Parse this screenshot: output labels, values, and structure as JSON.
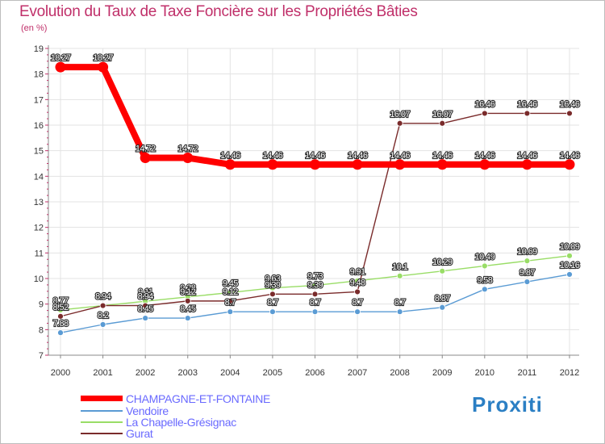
{
  "title": "Evolution du Taux de Taxe Foncière sur les Propriétés Bâties",
  "unit_label": "(en %)",
  "logo_text": "Proxiti",
  "chart_data": {
    "type": "line",
    "title": "Evolution du Taux de Taxe Foncière sur les Propriétés Bâties",
    "ylabel": "(en %)",
    "xlabel": "",
    "x": [
      "2000",
      "2001",
      "2002",
      "2003",
      "2004",
      "2005",
      "2006",
      "2007",
      "2008",
      "2009",
      "2010",
      "2011",
      "2012"
    ],
    "ylim": [
      7,
      19
    ],
    "yticks": [
      "7",
      "8",
      "9",
      "10",
      "11",
      "12",
      "13",
      "14",
      "15",
      "16",
      "17",
      "18",
      "19"
    ],
    "series": [
      {
        "name": "CHAMPAGNE-ET-FONTAINE",
        "color": "#ff0000",
        "label_color": "#ffffff",
        "values": [
          18.27,
          18.27,
          14.72,
          14.72,
          14.46,
          14.46,
          14.46,
          14.46,
          14.46,
          14.46,
          14.46,
          14.46,
          14.46
        ],
        "labels": [
          "18.27",
          "18.27",
          "14.72",
          "14.72",
          "14.46",
          "14.46",
          "14.46",
          "14.46",
          "14.46",
          "14.46",
          "14.46",
          "14.46",
          "14.46"
        ]
      },
      {
        "name": "Vendoire",
        "color": "#5a9bd4",
        "label_color": "#ffffff",
        "values": [
          7.88,
          8.2,
          8.45,
          8.45,
          8.7,
          8.7,
          8.7,
          8.7,
          8.7,
          8.87,
          9.58,
          9.87,
          10.16
        ],
        "labels": [
          "7.88",
          "8.2",
          "8.45",
          "8.45",
          "8.7",
          "8.7",
          "8.7",
          "8.7",
          "8.7",
          "8.87",
          "9.58",
          "9.87",
          "10.16"
        ]
      },
      {
        "name": "La Chapelle-Grésignac",
        "color": "#99dd66",
        "label_color": "#ffffff",
        "values": [
          8.77,
          8.94,
          9.11,
          9.28,
          9.45,
          9.63,
          9.73,
          9.91,
          10.1,
          10.29,
          10.49,
          10.69,
          10.89
        ],
        "labels": [
          "8.77",
          "8.94",
          "9.11",
          "9.28",
          "9.45",
          "9.63",
          "9.73",
          "9.91",
          "10.1",
          "10.29",
          "10.49",
          "10.69",
          "10.89"
        ]
      },
      {
        "name": "Gurat",
        "color": "#7a2b2b",
        "label_color": "#ffffff",
        "values": [
          8.52,
          8.94,
          8.94,
          9.12,
          9.12,
          9.39,
          9.39,
          9.48,
          16.07,
          16.07,
          16.46,
          16.46,
          16.46
        ],
        "labels": [
          "8.52",
          "8.94",
          "8.94",
          "9.12",
          "9.12",
          "9.39",
          "9.39",
          "9.48",
          "16.07",
          "16.07",
          "16.46",
          "16.46",
          "16.46"
        ]
      }
    ]
  }
}
